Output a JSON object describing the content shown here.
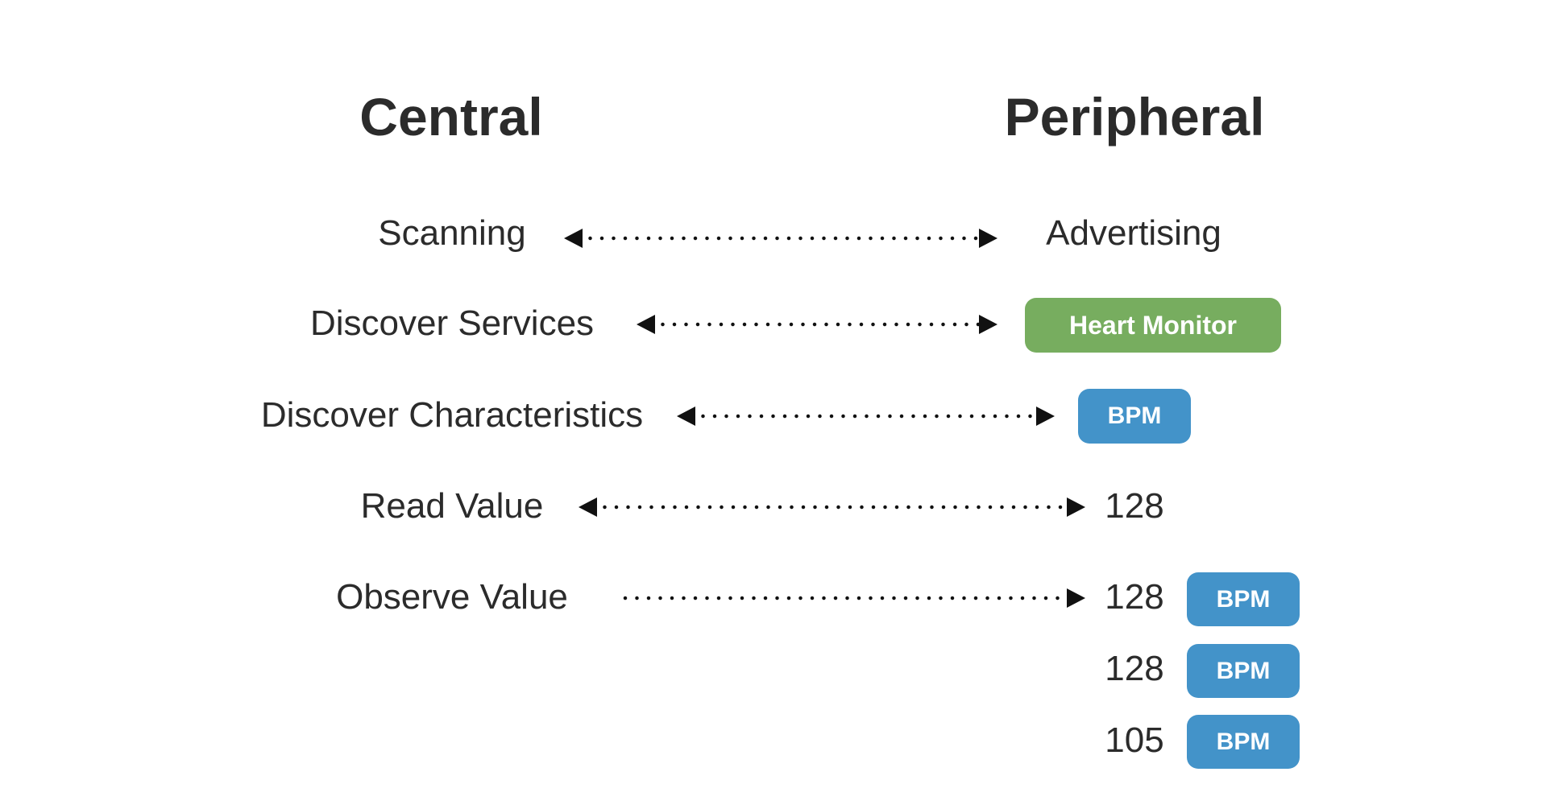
{
  "headers": {
    "central": "Central",
    "peripheral": "Peripheral"
  },
  "central": {
    "scanning": "Scanning",
    "discover_services": "Discover Services",
    "discover_characteristics": "Discover Characteristics",
    "read_value": "Read Value",
    "observe_value": "Observe Value"
  },
  "peripheral": {
    "advertising": "Advertising",
    "service_badge": "Heart Monitor",
    "characteristic_badge": "BPM",
    "read_value": "128",
    "observed": [
      {
        "value": "128",
        "unit": "BPM"
      },
      {
        "value": "128",
        "unit": "BPM"
      },
      {
        "value": "105",
        "unit": "BPM"
      }
    ]
  },
  "colors": {
    "service_badge": "#77ad5f",
    "characteristic_badge": "#4393c9",
    "text": "#2b2b2b",
    "arrow": "#111111"
  }
}
